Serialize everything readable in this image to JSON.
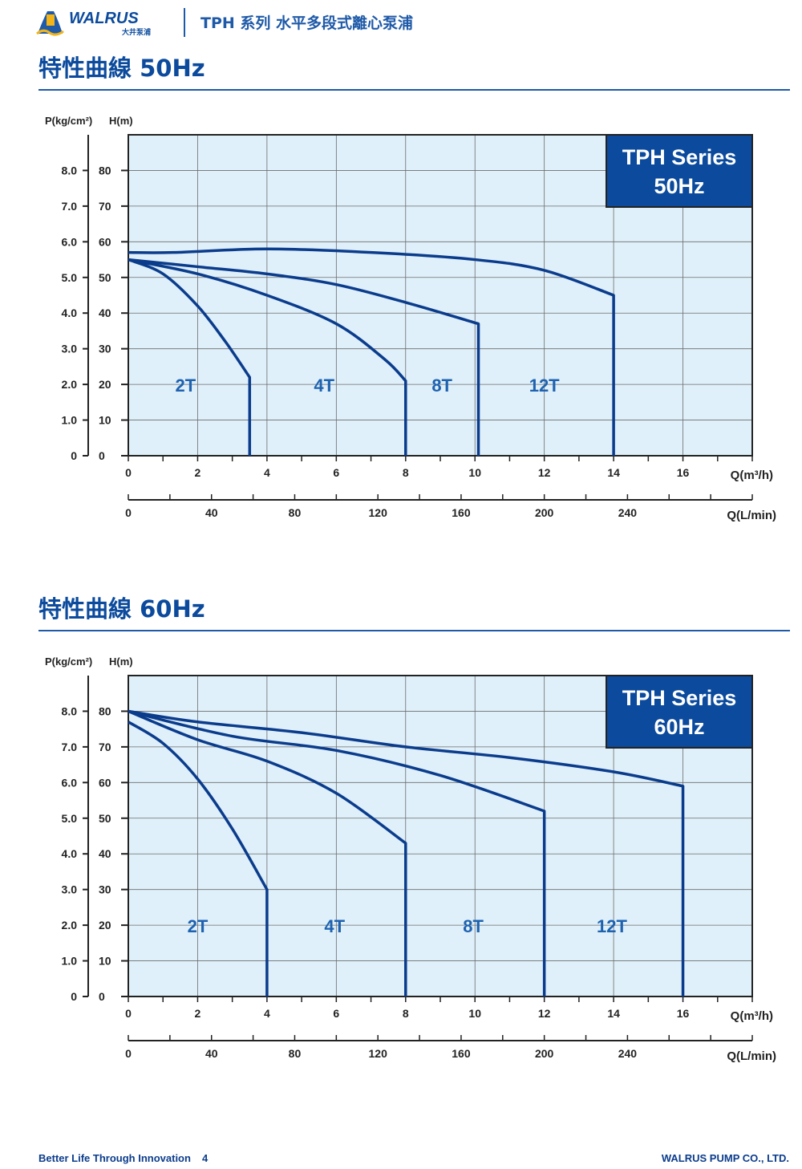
{
  "header": {
    "brand": "WALRUS",
    "brand_sub": "大井泵浦",
    "title": "TPH 系列 水平多段式離心泵浦"
  },
  "footer": {
    "tagline": "Better Life Through Innovation",
    "page": "4",
    "company": "WALRUS PUMP CO., LTD."
  },
  "colors": {
    "brand_blue": "#0b4a9c",
    "plot_bg": "#dff0fa",
    "curve": "#0b3c8c",
    "series_box": "#0b4a9c"
  },
  "sections": [
    {
      "title": "特性曲線 50Hz"
    },
    {
      "title": "特性曲線 60Hz"
    }
  ],
  "chart_data": [
    {
      "type": "line",
      "badge_line1": "TPH Series",
      "badge_line2": "50Hz",
      "ylabel_left": "P(kg/cm²)",
      "ylabel_right": "H(m)",
      "xlabel": "Q(m³/h)",
      "xlabel2": "Q(L/min)",
      "xlim": [
        0,
        18
      ],
      "ylim": [
        0,
        90
      ],
      "x_ticks": [
        "0",
        "2",
        "4",
        "6",
        "8",
        "10",
        "12",
        "14",
        "16"
      ],
      "y_ticks": [
        "0",
        "10",
        "20",
        "30",
        "40",
        "50",
        "60",
        "70",
        "80"
      ],
      "p_ticks": [
        "0",
        "1.0",
        "2.0",
        "3.0",
        "4.0",
        "5.0",
        "6.0",
        "7.0",
        "8.0"
      ],
      "lmin_ticks": [
        "0",
        "40",
        "80",
        "120",
        "160",
        "200",
        "240"
      ],
      "grid": true,
      "series": [
        {
          "name": "2T",
          "x": [
            0,
            1,
            2,
            2.8,
            3.5,
            3.5
          ],
          "y": [
            55,
            51,
            42,
            32,
            22,
            0
          ],
          "label_at": [
            1.65,
            20
          ]
        },
        {
          "name": "4T",
          "x": [
            0,
            2,
            4,
            6,
            7.4,
            8,
            8
          ],
          "y": [
            55,
            51,
            45,
            37,
            27,
            21,
            0
          ],
          "label_at": [
            5.65,
            20
          ]
        },
        {
          "name": "8T",
          "x": [
            0,
            2,
            4,
            6,
            8,
            10.1,
            10.1
          ],
          "y": [
            55,
            53,
            51,
            48,
            43,
            37,
            0
          ],
          "label_at": [
            9.05,
            20
          ]
        },
        {
          "name": "12T",
          "x": [
            0,
            1.3,
            4,
            7,
            10,
            12,
            14,
            14
          ],
          "y": [
            57,
            57,
            58,
            57,
            55,
            52,
            45,
            0
          ],
          "label_at": [
            12.0,
            20
          ]
        }
      ]
    },
    {
      "type": "line",
      "badge_line1": "TPH Series",
      "badge_line2": "60Hz",
      "ylabel_left": "P(kg/cm²)",
      "ylabel_right": "H(m)",
      "xlabel": "Q(m³/h)",
      "xlabel2": "Q(L/min)",
      "xlim": [
        0,
        18
      ],
      "ylim": [
        0,
        90
      ],
      "x_ticks": [
        "0",
        "2",
        "4",
        "6",
        "8",
        "10",
        "12",
        "14",
        "16"
      ],
      "y_ticks": [
        "0",
        "10",
        "20",
        "30",
        "40",
        "50",
        "60",
        "70",
        "80"
      ],
      "p_ticks": [
        "0",
        "1.0",
        "2.0",
        "3.0",
        "4.0",
        "5.0",
        "6.0",
        "7.0",
        "8.0"
      ],
      "lmin_ticks": [
        "0",
        "40",
        "80",
        "120",
        "160",
        "200",
        "240"
      ],
      "grid": true,
      "series": [
        {
          "name": "2T",
          "x": [
            0,
            1,
            2,
            3,
            4,
            4
          ],
          "y": [
            77,
            71,
            61,
            47,
            30,
            0
          ],
          "label_at": [
            2.0,
            20
          ]
        },
        {
          "name": "4T",
          "x": [
            0,
            2,
            4,
            6,
            8,
            8
          ],
          "y": [
            80,
            72,
            66,
            57,
            43,
            0
          ],
          "label_at": [
            5.95,
            20
          ]
        },
        {
          "name": "8T",
          "x": [
            0,
            3,
            6,
            9,
            12,
            12
          ],
          "y": [
            80,
            73,
            69,
            62,
            52,
            0
          ],
          "label_at": [
            9.95,
            20
          ]
        },
        {
          "name": "12T",
          "x": [
            0,
            2,
            5,
            8,
            11,
            14,
            16,
            16
          ],
          "y": [
            80,
            77,
            74,
            70,
            67,
            63,
            59,
            0
          ],
          "label_at": [
            13.95,
            20
          ]
        }
      ]
    }
  ]
}
